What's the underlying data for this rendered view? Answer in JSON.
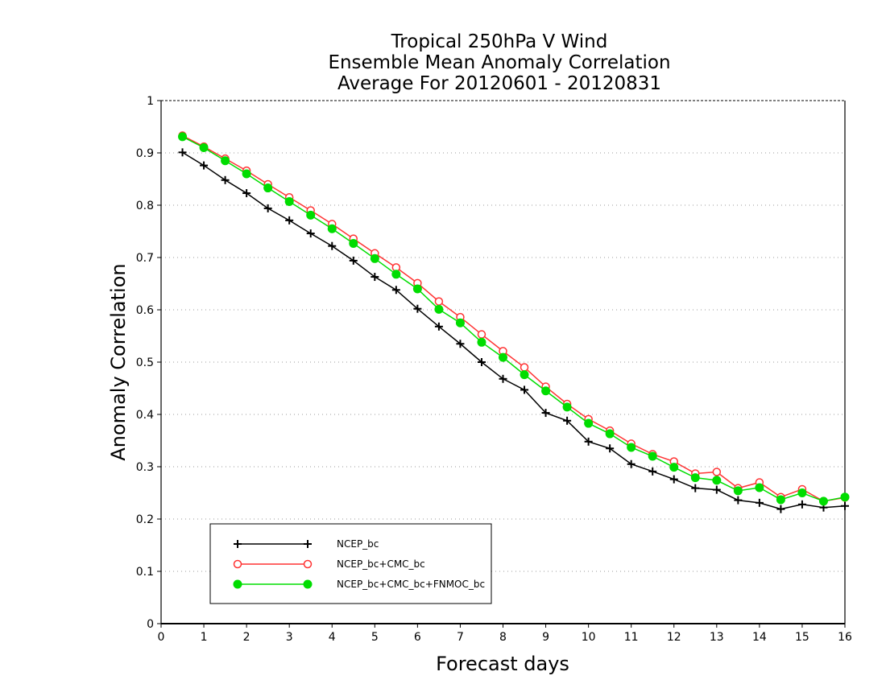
{
  "chart_data": {
    "type": "line",
    "title": [
      "Tropical 250hPa V Wind",
      "Ensemble Mean Anomaly Correlation",
      "Average For 20120601 - 20120831"
    ],
    "xlabel": "Forecast days",
    "ylabel": "Anomaly Correlation",
    "xlim": [
      0,
      16
    ],
    "ylim": [
      0,
      1
    ],
    "xticks": [
      0,
      1,
      2,
      3,
      4,
      5,
      6,
      7,
      8,
      9,
      10,
      11,
      12,
      13,
      14,
      15,
      16
    ],
    "yticks": [
      0,
      0.1,
      0.2,
      0.3,
      0.4,
      0.5,
      0.6,
      0.7,
      0.8,
      0.9,
      1
    ],
    "grid": true,
    "legend_placement": "bottom-left",
    "x": [
      0.5,
      1,
      1.5,
      2,
      2.5,
      3,
      3.5,
      4,
      4.5,
      5,
      5.5,
      6,
      6.5,
      7,
      7.5,
      8,
      8.5,
      9,
      9.5,
      10,
      10.5,
      11,
      11.5,
      12,
      12.5,
      13,
      13.5,
      14,
      14.5,
      15,
      15.5,
      16
    ],
    "series": [
      {
        "name": "NCEP_bc",
        "color": "#000000",
        "marker": "plus",
        "values": [
          0.901,
          0.876,
          0.848,
          0.823,
          0.794,
          0.771,
          0.746,
          0.722,
          0.694,
          0.663,
          0.638,
          0.602,
          0.568,
          0.535,
          0.5,
          0.468,
          0.447,
          0.403,
          0.388,
          0.348,
          0.335,
          0.305,
          0.291,
          0.276,
          0.259,
          0.256,
          0.236,
          0.231,
          0.219,
          0.228,
          0.222,
          0.225
        ]
      },
      {
        "name": "NCEP_bc+CMC_bc",
        "color": "#ff3333",
        "marker": "open-circle",
        "values": [
          0.933,
          0.912,
          0.889,
          0.866,
          0.84,
          0.815,
          0.79,
          0.764,
          0.736,
          0.708,
          0.681,
          0.651,
          0.616,
          0.586,
          0.553,
          0.521,
          0.49,
          0.453,
          0.42,
          0.391,
          0.369,
          0.344,
          0.324,
          0.31,
          0.287,
          0.29,
          0.259,
          0.27,
          0.242,
          0.257,
          0.234,
          0.241
        ]
      },
      {
        "name": "NCEP_bc+CMC_bc+FNMOC_bc",
        "color": "#00dd00",
        "marker": "filled-circle",
        "values": [
          0.931,
          0.91,
          0.885,
          0.86,
          0.833,
          0.807,
          0.781,
          0.755,
          0.727,
          0.698,
          0.668,
          0.64,
          0.601,
          0.575,
          0.538,
          0.509,
          0.476,
          0.445,
          0.414,
          0.383,
          0.363,
          0.337,
          0.32,
          0.299,
          0.279,
          0.274,
          0.254,
          0.26,
          0.237,
          0.25,
          0.234,
          0.242
        ]
      }
    ]
  }
}
